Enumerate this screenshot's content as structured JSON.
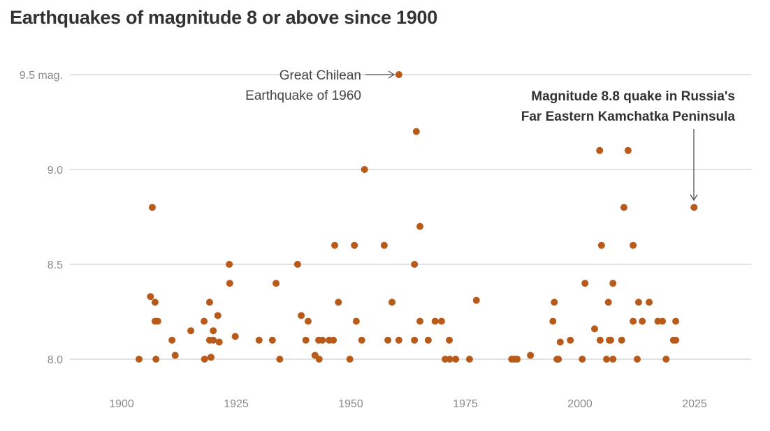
{
  "chart_data": {
    "type": "scatter",
    "title": "Earthquakes of magnitude 8 or above since 1900",
    "xlabel": "",
    "ylabel": "",
    "xlim": [
      1885,
      2037
    ],
    "ylim": [
      7.85,
      9.6
    ],
    "grid": true,
    "x_ticks": [
      1900,
      1925,
      1950,
      1975,
      2000,
      2025
    ],
    "x_tick_labels": [
      "1900",
      "1925",
      "1950",
      "1975",
      "2000",
      "2025"
    ],
    "y_ticks": [
      8.0,
      8.5,
      9.0,
      9.5
    ],
    "y_tick_labels": [
      "8.0",
      "8.5",
      "9.0",
      "9.5 mag."
    ],
    "color": "#b85a1a",
    "annotations": [
      {
        "line1": "Great Chilean",
        "line2": "Earthquake of 1960",
        "x": 1960.5,
        "y": 9.5
      },
      {
        "line1": "Magnitude 8.8 quake in Russia's",
        "line2": "Far Eastern Kamchatka Peninsula",
        "x": 2024.9,
        "y": 8.8
      }
    ],
    "points": [
      [
        1903.8,
        8.0
      ],
      [
        1906.3,
        8.33
      ],
      [
        1906.7,
        8.8
      ],
      [
        1907.3,
        8.3
      ],
      [
        1907.3,
        8.2
      ],
      [
        1907.9,
        8.2
      ],
      [
        1907.5,
        8.0
      ],
      [
        1911.0,
        8.1
      ],
      [
        1911.7,
        8.02
      ],
      [
        1915.1,
        8.15
      ],
      [
        1918.0,
        8.2
      ],
      [
        1918.1,
        8.0
      ],
      [
        1919.2,
        8.3
      ],
      [
        1919.2,
        8.1
      ],
      [
        1920.0,
        8.1
      ],
      [
        1919.5,
        8.01
      ],
      [
        1920.0,
        8.15
      ],
      [
        1921.0,
        8.23
      ],
      [
        1921.3,
        8.09
      ],
      [
        1923.5,
        8.5
      ],
      [
        1923.6,
        8.4
      ],
      [
        1924.8,
        8.12
      ],
      [
        1930.0,
        8.1
      ],
      [
        1932.9,
        8.1
      ],
      [
        1933.7,
        8.4
      ],
      [
        1934.5,
        8.0
      ],
      [
        1938.4,
        8.5
      ],
      [
        1939.2,
        8.23
      ],
      [
        1940.2,
        8.1
      ],
      [
        1940.7,
        8.2
      ],
      [
        1942.2,
        8.02
      ],
      [
        1943.0,
        8.1
      ],
      [
        1943.8,
        8.1
      ],
      [
        1943.1,
        8.0
      ],
      [
        1945.3,
        8.1
      ],
      [
        1946.2,
        8.1
      ],
      [
        1946.5,
        8.6
      ],
      [
        1947.3,
        8.3
      ],
      [
        1949.8,
        8.0
      ],
      [
        1950.8,
        8.6
      ],
      [
        1951.2,
        8.2
      ],
      [
        1952.4,
        8.1
      ],
      [
        1953.0,
        9.0
      ],
      [
        1957.3,
        8.6
      ],
      [
        1958.1,
        8.1
      ],
      [
        1959.0,
        8.3
      ],
      [
        1960.5,
        9.5
      ],
      [
        1960.5,
        8.1
      ],
      [
        1963.9,
        8.5
      ],
      [
        1963.9,
        8.1
      ],
      [
        1964.3,
        9.2
      ],
      [
        1965.1,
        8.7
      ],
      [
        1965.1,
        8.2
      ],
      [
        1966.9,
        8.1
      ],
      [
        1968.4,
        8.2
      ],
      [
        1969.8,
        8.2
      ],
      [
        1970.6,
        8.0
      ],
      [
        1971.6,
        8.0
      ],
      [
        1972.9,
        8.0
      ],
      [
        1971.5,
        8.1
      ],
      [
        1975.9,
        8.0
      ],
      [
        1977.4,
        8.31
      ],
      [
        1985.1,
        8.0
      ],
      [
        1985.7,
        8.0
      ],
      [
        1986.3,
        8.0
      ],
      [
        1989.2,
        8.02
      ],
      [
        1994.1,
        8.2
      ],
      [
        1994.4,
        8.3
      ],
      [
        1995.0,
        8.0
      ],
      [
        1995.3,
        8.0
      ],
      [
        1995.7,
        8.09
      ],
      [
        1997.9,
        8.1
      ],
      [
        2000.5,
        8.0
      ],
      [
        2001.1,
        8.4
      ],
      [
        2003.2,
        8.16
      ],
      [
        2004.3,
        9.1
      ],
      [
        2004.7,
        8.6
      ],
      [
        2004.4,
        8.1
      ],
      [
        2005.8,
        8.0
      ],
      [
        2006.2,
        8.3
      ],
      [
        2006.4,
        8.1
      ],
      [
        2006.7,
        8.1
      ],
      [
        2007.2,
        8.0
      ],
      [
        2007.2,
        8.4
      ],
      [
        2009.1,
        8.1
      ],
      [
        2009.6,
        8.8
      ],
      [
        2010.5,
        9.1
      ],
      [
        2011.6,
        8.6
      ],
      [
        2011.6,
        8.2
      ],
      [
        2012.5,
        8.0
      ],
      [
        2012.8,
        8.3
      ],
      [
        2013.6,
        8.2
      ],
      [
        2015.1,
        8.3
      ],
      [
        2017.0,
        8.2
      ],
      [
        2018.0,
        8.2
      ],
      [
        2018.8,
        8.0
      ],
      [
        2020.4,
        8.1
      ],
      [
        2020.9,
        8.1
      ],
      [
        2020.9,
        8.2
      ],
      [
        2024.9,
        8.8
      ]
    ]
  }
}
